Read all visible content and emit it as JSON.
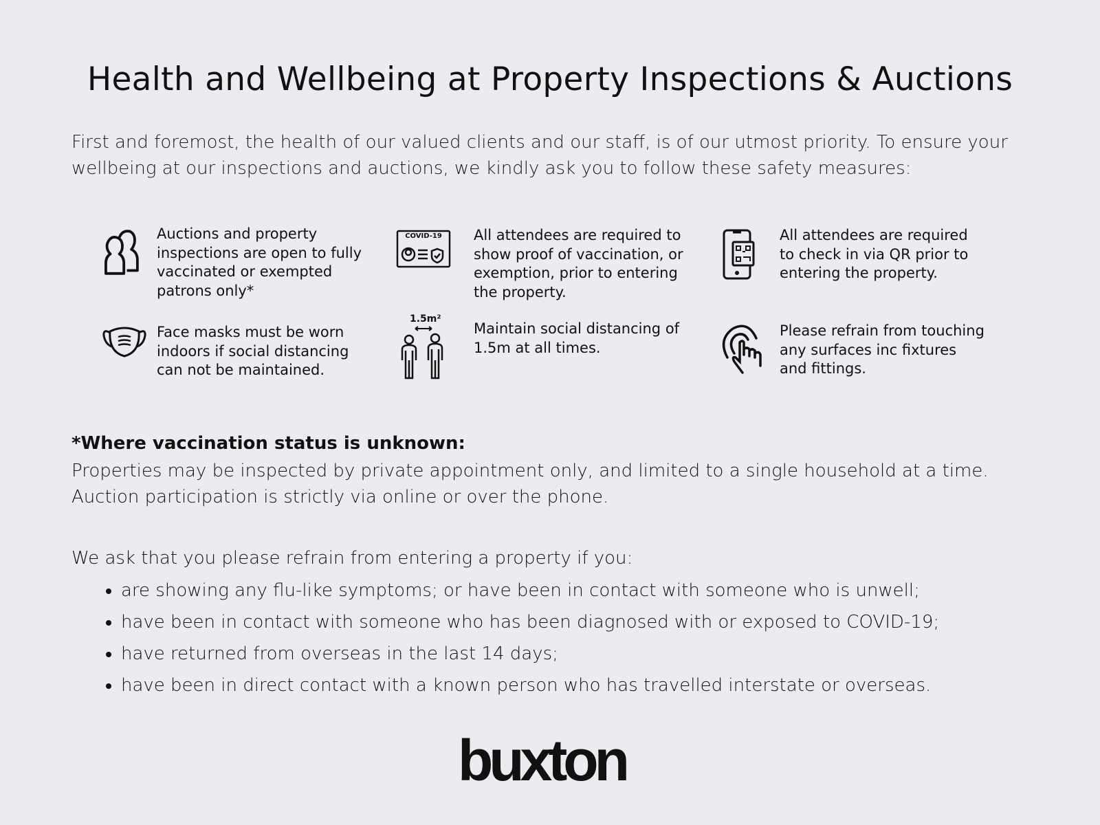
{
  "title": "Health and Wellbeing at Property Inspections & Auctions",
  "intro": "First and foremost, the health of our valued clients and our staff, is of our utmost priority. To ensure your wellbeing at our inspections and auctions, we kindly ask you to follow these safety measures:",
  "measures": [
    {
      "icon": "people-icon",
      "text": "Auctions and property inspections are open to fully vaccinated or exempted patrons only*"
    },
    {
      "icon": "covid-certificate-icon",
      "icon_label": "COVID-19",
      "text": "All attendees are required to show proof of vaccination, or exemption, prior to entering the property."
    },
    {
      "icon": "phone-qr-icon",
      "text": "All attendees are required to check in via QR prior to entering the property."
    },
    {
      "icon": "face-mask-icon",
      "text": "Face masks must be worn indoors if social distancing can not be maintained."
    },
    {
      "icon": "social-distance-icon",
      "icon_label": "1.5m²",
      "text": "Maintain social distancing of 1.5m at all times."
    },
    {
      "icon": "touch-hand-icon",
      "text": "Please refrain from touching any surfaces inc fixtures and fittings."
    }
  ],
  "note": {
    "heading": "*Where vaccination status is unknown:",
    "line1": "Properties may be inspected by private appointment only, and limited to a single household at a time.",
    "line2": "Auction participation is strictly via online or over the phone."
  },
  "ask": "We ask that you please refrain from entering a property if you:",
  "bullets": [
    "are showing any flu-like symptoms; or have been in contact with someone who is unwell;",
    "have been in contact with someone who has been diagnosed with or exposed to COVID-19;",
    "have returned from overseas in the last 14 days;",
    "have been in direct contact with a known person who has travelled interstate or overseas."
  ],
  "logo": "buxton"
}
